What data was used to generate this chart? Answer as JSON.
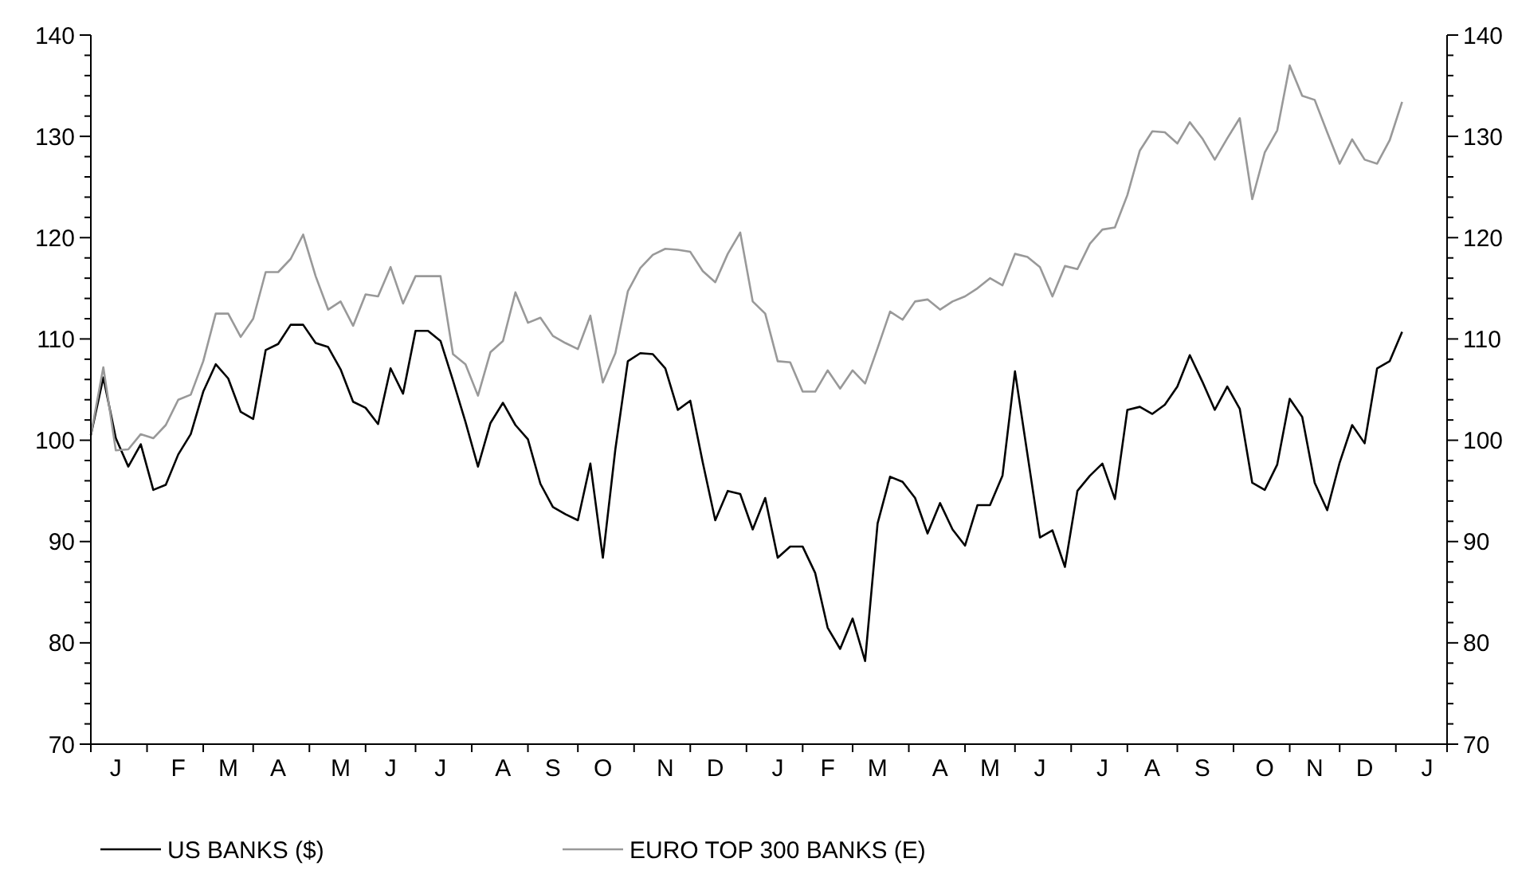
{
  "chart_data": {
    "type": "line",
    "categories": [
      null,
      null,
      "J",
      null,
      null,
      null,
      null,
      "F",
      null,
      null,
      null,
      "M",
      null,
      null,
      null,
      "A",
      null,
      null,
      null,
      null,
      "M",
      null,
      null,
      null,
      "J",
      null,
      null,
      null,
      "J",
      null,
      null,
      null,
      null,
      "A",
      null,
      null,
      null,
      "S",
      null,
      null,
      null,
      "O",
      null,
      null,
      null,
      null,
      "N",
      null,
      null,
      null,
      "D",
      null,
      null,
      null,
      null,
      "J",
      null,
      null,
      null,
      "F",
      null,
      null,
      null,
      "M",
      null,
      null,
      null,
      null,
      "A",
      null,
      null,
      null,
      "M",
      null,
      null,
      null,
      "J",
      null,
      null,
      null,
      null,
      "J",
      null,
      null,
      null,
      "A",
      null,
      null,
      null,
      "S",
      null,
      null,
      null,
      null,
      "O",
      null,
      null,
      null,
      "N",
      null,
      null,
      null,
      "D",
      null,
      null,
      null,
      null,
      "J"
    ],
    "ylim": [
      70,
      140
    ],
    "yticks": [
      70,
      {
        "value": 72,
        "label": null
      },
      {
        "value": 74,
        "label": null
      },
      {
        "value": 76,
        "label": null
      },
      {
        "value": 78,
        "label": null
      },
      80,
      {
        "value": 82,
        "label": null
      },
      {
        "value": 84,
        "label": null
      },
      {
        "value": 86,
        "label": null
      },
      {
        "value": 88,
        "label": null
      },
      90,
      {
        "value": 92,
        "label": null
      },
      {
        "value": 94,
        "label": null
      },
      {
        "value": 96,
        "label": null
      },
      {
        "value": 98,
        "label": null
      },
      100,
      {
        "value": 102,
        "label": null
      },
      {
        "value": 104,
        "label": null
      },
      {
        "value": 106,
        "label": null
      },
      {
        "value": 108,
        "label": null
      },
      110,
      {
        "value": 112,
        "label": null
      },
      {
        "value": 114,
        "label": null
      },
      {
        "value": 116,
        "label": null
      },
      {
        "value": 118,
        "label": null
      },
      120,
      {
        "value": 122,
        "label": null
      },
      {
        "value": 124,
        "label": null
      },
      {
        "value": 126,
        "label": null
      },
      {
        "value": 128,
        "label": null
      },
      130,
      {
        "value": 132,
        "label": null
      },
      {
        "value": 134,
        "label": null
      },
      {
        "value": 136,
        "label": null
      },
      {
        "value": 138,
        "label": null
      },
      140
    ],
    "y2lim": [
      70,
      140
    ],
    "y2ticks": [
      70,
      {
        "value": 72,
        "label": null
      },
      {
        "value": 74,
        "label": null
      },
      {
        "value": 76,
        "label": null
      },
      {
        "value": 78,
        "label": null
      },
      80,
      {
        "value": 82,
        "label": null
      },
      {
        "value": 84,
        "label": null
      },
      {
        "value": 86,
        "label": null
      },
      {
        "value": 88,
        "label": null
      },
      90,
      {
        "value": 92,
        "label": null
      },
      {
        "value": 94,
        "label": null
      },
      {
        "value": 96,
        "label": null
      },
      {
        "value": 98,
        "label": null
      },
      100,
      {
        "value": 102,
        "label": null
      },
      {
        "value": 104,
        "label": null
      },
      {
        "value": 106,
        "label": null
      },
      {
        "value": 108,
        "label": null
      },
      110,
      {
        "value": 112,
        "label": null
      },
      {
        "value": 114,
        "label": null
      },
      {
        "value": 116,
        "label": null
      },
      {
        "value": 118,
        "label": null
      },
      120,
      {
        "value": 122,
        "label": null
      },
      {
        "value": 124,
        "label": null
      },
      {
        "value": 126,
        "label": null
      },
      {
        "value": 128,
        "label": null
      },
      130,
      {
        "value": 132,
        "label": null
      },
      {
        "value": 134,
        "label": null
      },
      {
        "value": 136,
        "label": null
      },
      {
        "value": 138,
        "label": null
      },
      140
    ],
    "grid": false,
    "legend": "bottom",
    "marker": "none",
    "line_style": "solid",
    "series": [
      {
        "name": "US BANKS ($)",
        "color": "#000000",
        "values": [
          100.5,
          106.2,
          100.2,
          97.4,
          99.6,
          95.1,
          95.6,
          98.6,
          100.6,
          104.8,
          107.5,
          106.1,
          102.8,
          102.1,
          108.9,
          109.5,
          111.4,
          111.4,
          109.6,
          109.2,
          107.0,
          103.8,
          103.2,
          101.6,
          107.1,
          104.6,
          110.8,
          110.8,
          109.8,
          105.9,
          101.8,
          97.4,
          101.7,
          103.7,
          101.5,
          100.1,
          95.7,
          93.4,
          92.7,
          92.1,
          97.7,
          88.4,
          99.1,
          107.8,
          108.6,
          108.5,
          107.1,
          103.0,
          103.9,
          97.8,
          92.1,
          95.0,
          94.7,
          91.2,
          94.3,
          88.4,
          89.5,
          89.5,
          86.9,
          81.5,
          79.4,
          82.4,
          78.2,
          91.8,
          96.4,
          95.9,
          94.3,
          90.8,
          93.8,
          91.2,
          89.6,
          93.6,
          93.6,
          96.5,
          106.8,
          98.6,
          90.4,
          91.1,
          87.5,
          95.0,
          96.5,
          97.7,
          94.2,
          103.0,
          103.3,
          102.6,
          103.5,
          105.3,
          108.4,
          105.8,
          103.0,
          105.3,
          103.1,
          95.8,
          95.1,
          97.6,
          104.1,
          102.3,
          95.8,
          93.1,
          97.8,
          101.5,
          99.7,
          107.1,
          107.8,
          110.7,
          null,
          null
        ]
      },
      {
        "name": "EURO TOP 300 BANKS (E)",
        "color": "#999999",
        "values": [
          100.5,
          107.2,
          99.0,
          99.1,
          100.6,
          100.2,
          101.5,
          104.0,
          104.5,
          107.8,
          112.5,
          112.5,
          110.2,
          112.0,
          116.6,
          116.6,
          117.9,
          120.3,
          116.2,
          112.9,
          113.7,
          111.3,
          114.4,
          114.2,
          117.1,
          113.5,
          116.2,
          116.2,
          116.2,
          108.5,
          107.5,
          104.4,
          108.7,
          109.8,
          114.6,
          111.6,
          112.1,
          110.3,
          109.6,
          109.0,
          112.3,
          105.7,
          108.6,
          114.7,
          117.0,
          118.3,
          118.9,
          118.8,
          118.6,
          116.7,
          115.6,
          118.4,
          120.5,
          113.7,
          112.5,
          107.8,
          107.7,
          104.8,
          104.8,
          106.9,
          105.1,
          106.9,
          105.6,
          109.1,
          112.7,
          111.9,
          113.7,
          113.9,
          112.9,
          113.7,
          114.2,
          115.0,
          116.0,
          115.3,
          118.4,
          118.1,
          117.1,
          114.2,
          117.2,
          116.9,
          119.4,
          120.8,
          121.0,
          124.2,
          128.6,
          130.5,
          130.4,
          129.3,
          131.4,
          129.8,
          127.7,
          129.8,
          131.8,
          123.8,
          128.4,
          130.6,
          137.0,
          134.0,
          133.6,
          130.4,
          127.3,
          129.7,
          127.7,
          127.3,
          129.6,
          133.4,
          null,
          null
        ]
      }
    ]
  }
}
